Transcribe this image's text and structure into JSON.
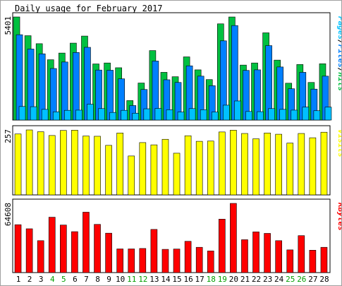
{
  "title": "Daily usage for February 2017",
  "colors": {
    "hits": "#00c040",
    "files": "#0080ff",
    "pages": "#00c0ff",
    "visits": "#ffff00",
    "kbytes": "#ff0000",
    "weekday": "#000000",
    "weekend": "#00a000"
  },
  "chart_data": {
    "type": "bar",
    "categories": [
      "1",
      "2",
      "3",
      "4",
      "5",
      "6",
      "7",
      "8",
      "9",
      "10",
      "11",
      "12",
      "13",
      "14",
      "15",
      "16",
      "17",
      "18",
      "19",
      "20",
      "21",
      "22",
      "23",
      "24",
      "25",
      "26",
      "27",
      "28"
    ],
    "weekend_days": [
      "4",
      "5",
      "11",
      "12",
      "18",
      "19",
      "25",
      "26"
    ],
    "panels": [
      {
        "id": "hits-files-pages",
        "ylabel_max": "5401",
        "legend": [
          {
            "key": "pages",
            "text": "Pages"
          },
          {
            "key": "sep",
            "text": "/"
          },
          {
            "key": "files",
            "text": "Files"
          },
          {
            "key": "sep",
            "text": "/"
          },
          {
            "key": "hits",
            "text": "Hits"
          }
        ],
        "ylim": [
          0,
          5401
        ],
        "series": [
          {
            "key": "hits",
            "values": [
              5401,
              4420,
              4000,
              3160,
              3510,
              4030,
              4400,
              2940,
              2990,
              2740,
              1020,
              1940,
              3640,
              2500,
              2270,
              3310,
              2630,
              2120,
              5040,
              5400,
              2880,
              2990,
              4570,
              3140,
              1930,
              2910,
              1970,
              2950
            ]
          },
          {
            "key": "files",
            "values": [
              4470,
              3720,
              3470,
              2700,
              3040,
              3540,
              3810,
              2620,
              2610,
              2160,
              760,
              1600,
              3090,
              2110,
              1970,
              2840,
              2300,
              1800,
              4150,
              4950,
              2600,
              2630,
              3900,
              2780,
              1640,
              2500,
              1620,
              2300
            ]
          },
          {
            "key": "pages",
            "values": [
              710,
              700,
              560,
              430,
              510,
              520,
              830,
              600,
              400,
              510,
              360,
              590,
              610,
              540,
              420,
              600,
              540,
              420,
              780,
              1000,
              450,
              440,
              600,
              560,
              520,
              680,
              490,
              680
            ]
          }
        ]
      },
      {
        "id": "visits",
        "ylabel_max": "257",
        "legend": [
          {
            "key": "visits",
            "text": "Visits"
          }
        ],
        "ylim": [
          0,
          257
        ],
        "series": [
          {
            "key": "visits",
            "values": [
              241,
              257,
              250,
              235,
              255,
              256,
              233,
              232,
              196,
              245,
              154,
              207,
              198,
              220,
              165,
              234,
              212,
              213,
              249,
              256,
              243,
              222,
              245,
              240,
              205,
              243,
              226,
              248
            ]
          }
        ]
      },
      {
        "id": "kbytes",
        "ylabel_max": "64608",
        "legend": [
          {
            "key": "kbytes",
            "text": "KBytes"
          }
        ],
        "ylim": [
          0,
          64608
        ],
        "series": [
          {
            "key": "kbytes",
            "values": [
              44700,
              40900,
              29800,
              51700,
              44400,
              38200,
              56400,
              45000,
              36800,
              22100,
              22100,
              22500,
              40300,
              21700,
              22000,
              29200,
              23600,
              20200,
              49900,
              64600,
              30700,
              38000,
              36600,
              29800,
              21200,
              34500,
              20900,
              23600
            ]
          }
        ]
      }
    ]
  }
}
